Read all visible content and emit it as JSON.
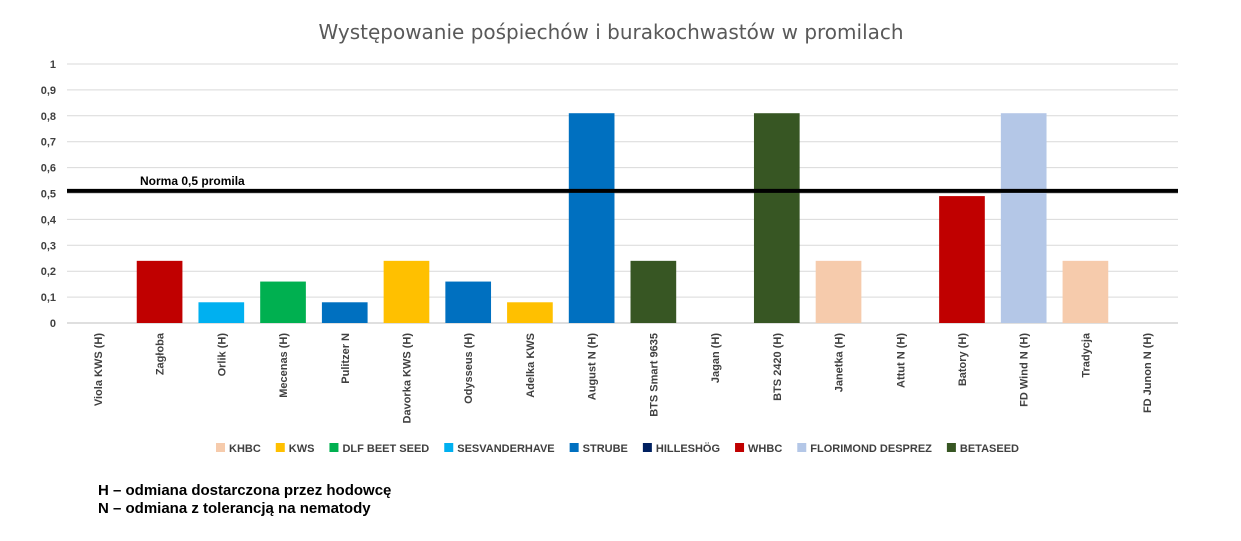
{
  "chart_data": {
    "type": "bar",
    "title": "Występowanie pośpiechów i burakochwastów w promilach",
    "xlabel": "",
    "ylabel": "",
    "ylim": [
      0,
      1
    ],
    "yticks": [
      "0",
      "0,1",
      "0,2",
      "0,3",
      "0,4",
      "0,5",
      "0,6",
      "0,7",
      "0,8",
      "0,9",
      "1"
    ],
    "grid": true,
    "legend_position": "bottom",
    "categories": [
      "Viola KWS (H)",
      "Zagłoba",
      "Orlik (H)",
      "Mecenas (H)",
      "Pulitzer  N",
      "Davorka KWS (H)",
      "Odysseus (H)",
      "Adelka KWS",
      "August N (H)",
      "BTS Smart 9635",
      "Jagan (H)",
      "BTS 2420 (H)",
      "Janetka (H)",
      "Attut N (H)",
      "Batory (H)",
      "FD Wind  N (H)",
      "Tradycja",
      "FD Junon  N (H)"
    ],
    "values": [
      0,
      0.24,
      0.08,
      0.16,
      0.08,
      0.24,
      0.16,
      0.08,
      0.81,
      0.24,
      0,
      0.81,
      0.24,
      0,
      0.49,
      0.81,
      0.24,
      0
    ],
    "bar_breeder": [
      "KWS",
      "WHBC",
      "SESVANDERHAVE",
      "DLF BEET SEED",
      "STRUBE",
      "KWS",
      "STRUBE",
      "KWS",
      "STRUBE",
      "BETASEED",
      "HILLESHÖG",
      "BETASEED",
      "KHBC",
      "HILLESHÖG",
      "WHBC",
      "FLORIMOND DESPREZ",
      "KHBC",
      "FLORIMOND DESPREZ"
    ],
    "legend": [
      {
        "name": "KHBC",
        "color": "#F6CBAC"
      },
      {
        "name": "KWS",
        "color": "#FFC000"
      },
      {
        "name": "DLF BEET SEED",
        "color": "#00B050"
      },
      {
        "name": "SESVANDERHAVE",
        "color": "#00B0F0"
      },
      {
        "name": "STRUBE",
        "color": "#0070C0"
      },
      {
        "name": "HILLESHÖG",
        "color": "#002060"
      },
      {
        "name": "WHBC",
        "color": "#C00000"
      },
      {
        "name": "FLORIMOND DESPREZ",
        "color": "#B4C7E7"
      },
      {
        "name": "BETASEED",
        "color": "#375623"
      }
    ],
    "reference_line": {
      "value": 0.51,
      "label": "Norma 0,5 promila",
      "color": "#000000"
    }
  },
  "notes": [
    "H – odmiana dostarczona przez hodowcę",
    "N – odmiana z tolerancją na nematody"
  ]
}
